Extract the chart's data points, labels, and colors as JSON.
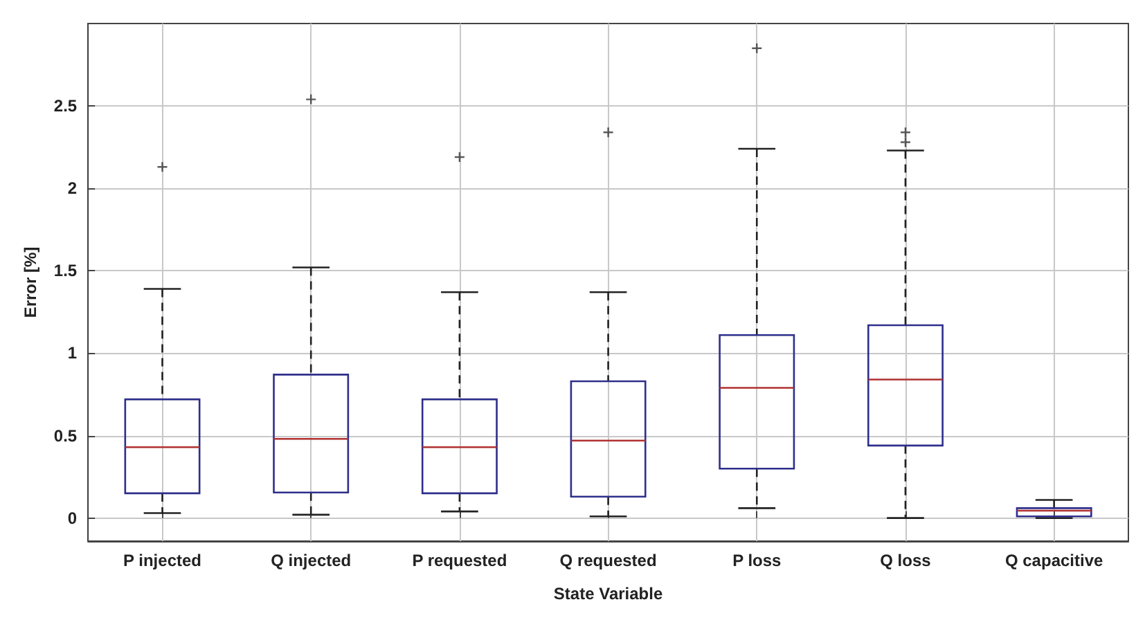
{
  "chart_data": {
    "type": "box",
    "xlabel": "State Variable",
    "ylabel": "Error [%]",
    "categories": [
      "P injected",
      "Q injected",
      "P requested",
      "Q requested",
      "P loss",
      "Q loss",
      "Q capacitive"
    ],
    "series": [
      {
        "color": "#2e2e8c",
        "boxes": [
          {
            "low": 0.03,
            "q1": 0.15,
            "median": 0.43,
            "q3": 0.72,
            "high": 1.39,
            "outliers": [
              2.13
            ]
          },
          {
            "low": 0.02,
            "q1": 0.155,
            "median": 0.48,
            "q3": 0.87,
            "high": 1.52,
            "outliers": [
              2.54
            ]
          },
          {
            "low": 0.04,
            "q1": 0.15,
            "median": 0.43,
            "q3": 0.72,
            "high": 1.37,
            "outliers": [
              2.19
            ]
          },
          {
            "low": 0.01,
            "q1": 0.13,
            "median": 0.47,
            "q3": 0.83,
            "high": 1.37,
            "outliers": [
              2.34
            ]
          },
          {
            "low": 0.06,
            "q1": 0.3,
            "median": 0.79,
            "q3": 1.11,
            "high": 2.24,
            "outliers": [
              2.85
            ]
          },
          {
            "low": 0,
            "q1": 0.44,
            "median": 0.84,
            "q3": 1.17,
            "high": 2.23,
            "outliers": [
              2.28,
              2.34
            ]
          },
          {
            "low": 0,
            "q1": 0.01,
            "median": 0.045,
            "q3": 0.06,
            "high": 0.11
          }
        ]
      }
    ],
    "ylim": [
      -0.14,
      3
    ],
    "yticks": [
      0,
      0.5,
      1,
      1.5,
      2,
      2.5
    ],
    "grid": true,
    "marker": "cross"
  }
}
